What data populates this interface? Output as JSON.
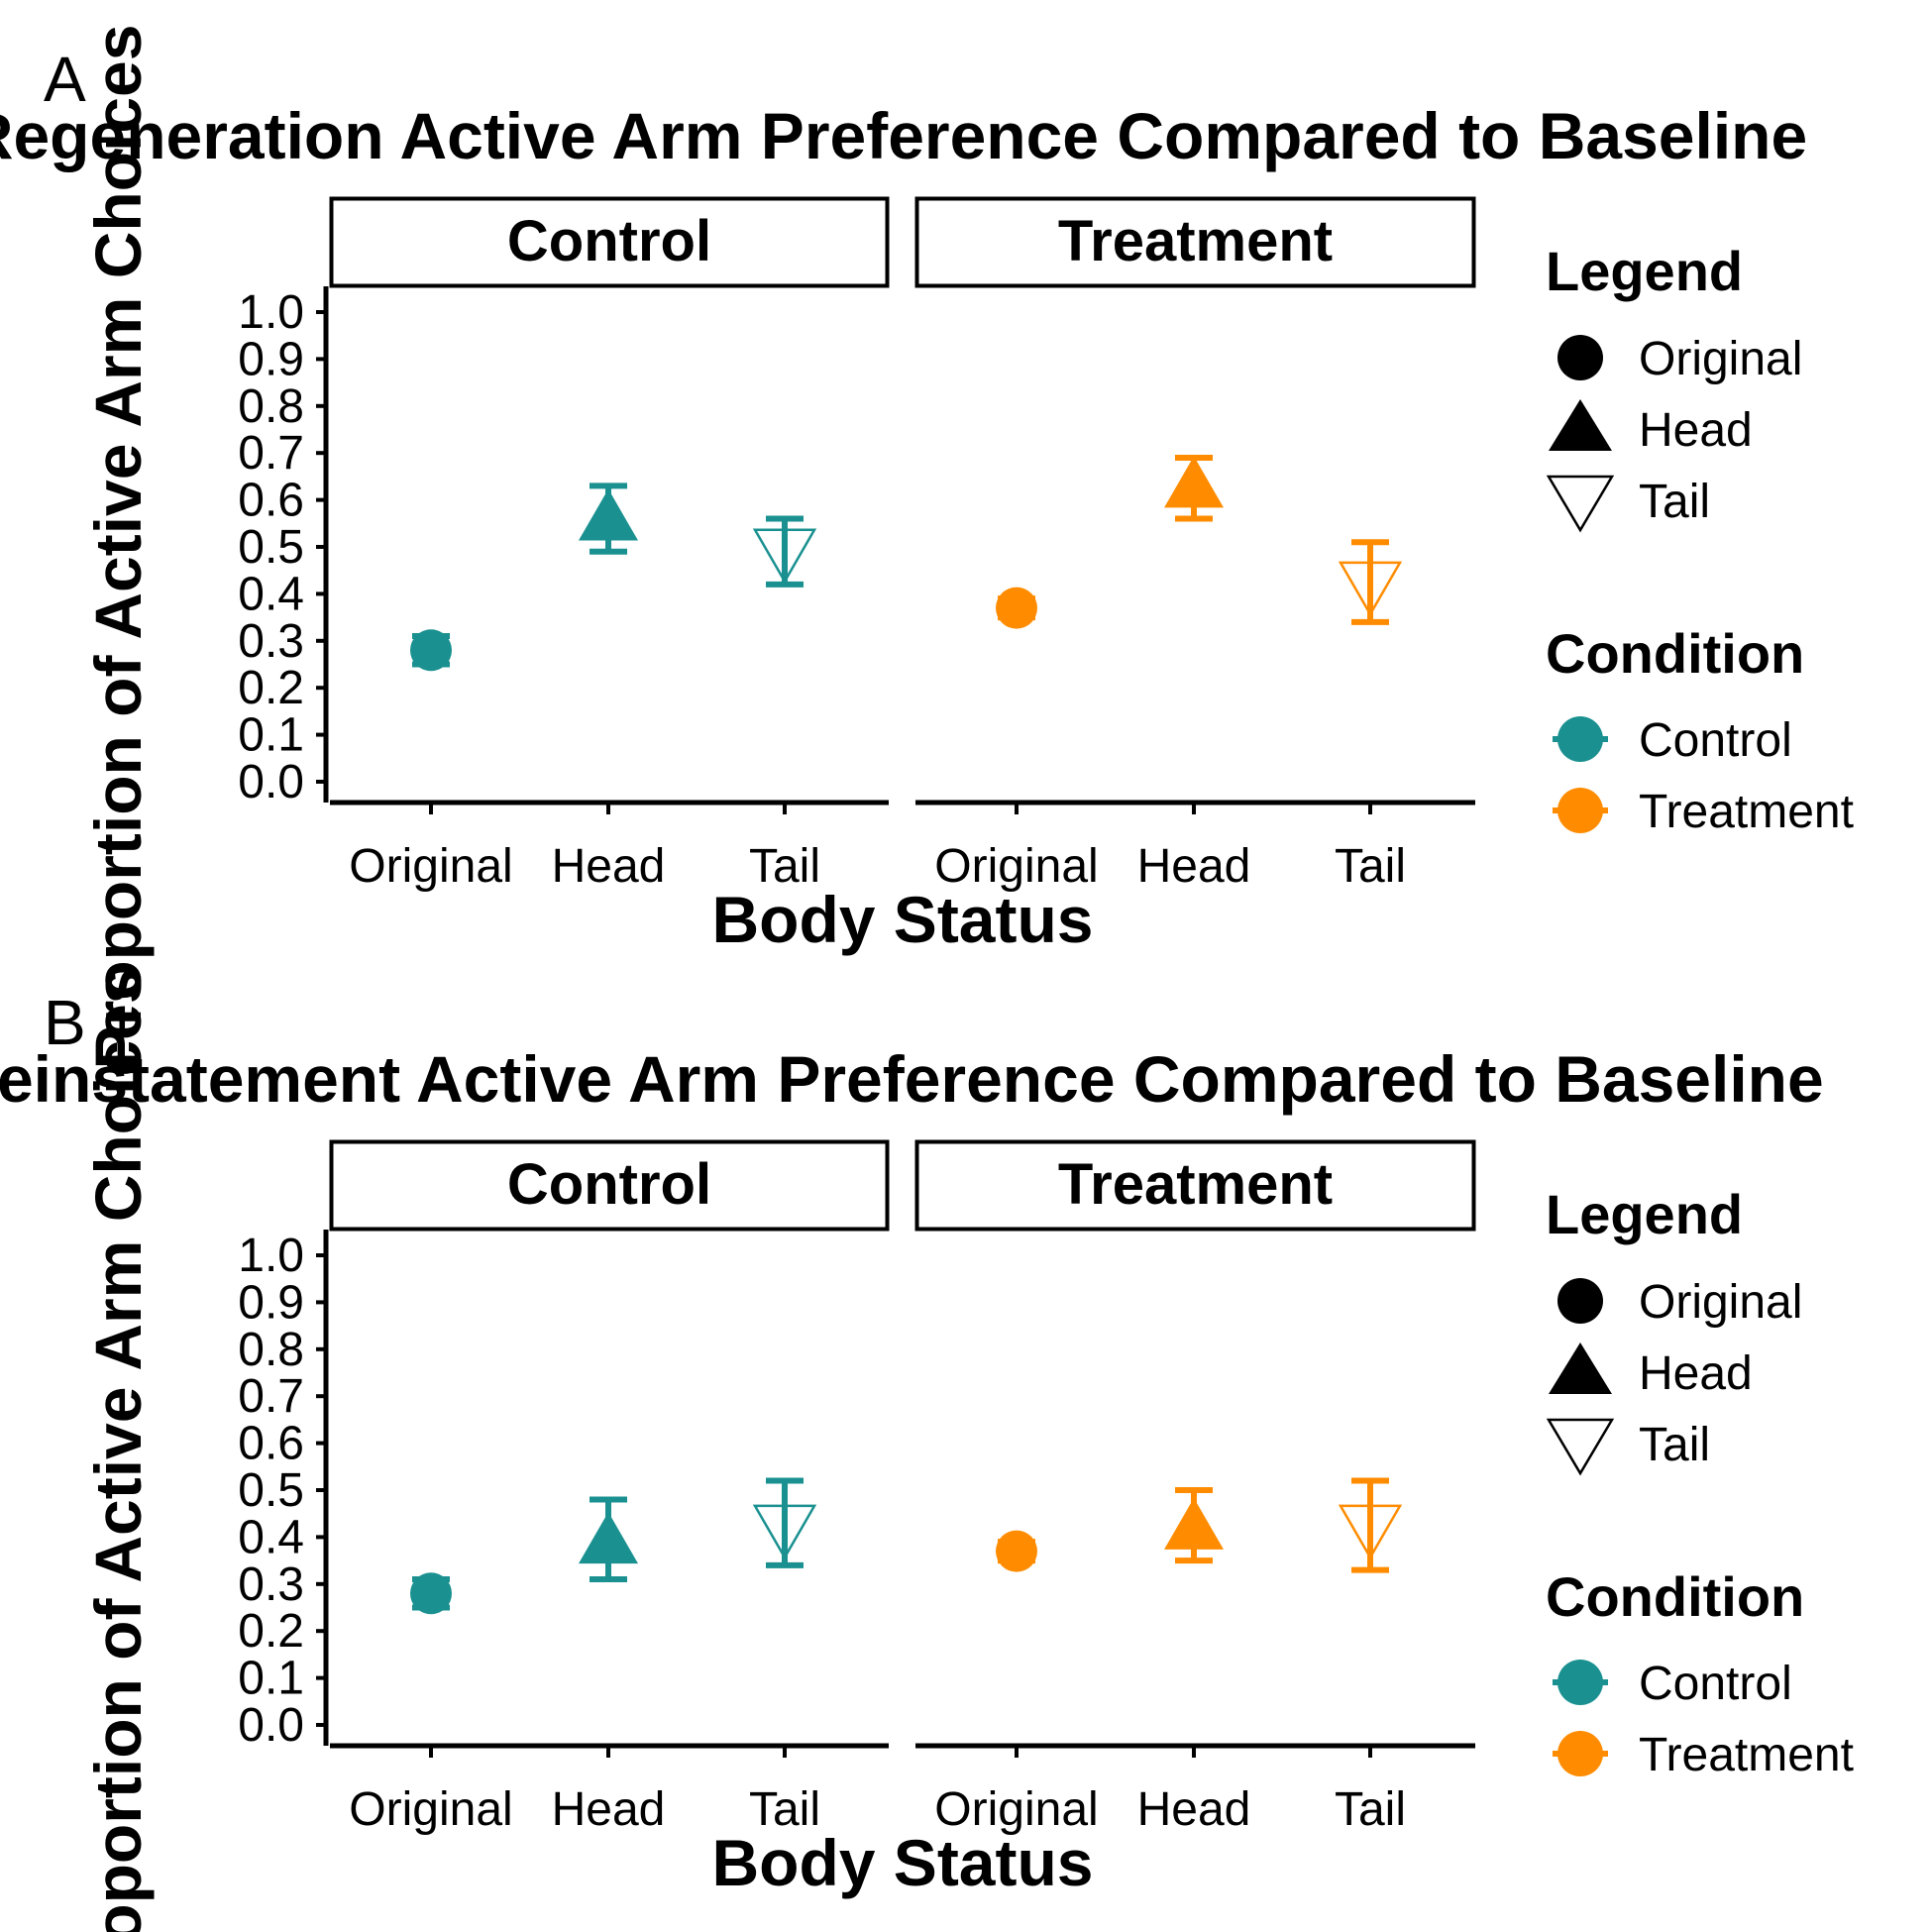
{
  "panel_labels": [
    "A",
    "B"
  ],
  "legend": {
    "shape_title": "Legend",
    "shape_items": [
      "Original",
      "Head",
      "Tail"
    ],
    "color_title": "Condition",
    "color_items": [
      "Control",
      "Treatment"
    ]
  },
  "colors": {
    "Control": "#1A9090",
    "Treatment": "#FF8C00",
    "axis": "#000000"
  },
  "chart_data": [
    {
      "type": "scatter",
      "panel": "A",
      "title": "Regeneration Active Arm Preference Compared to Baseline",
      "xlabel": "Body Status",
      "ylabel": "Proportion of Active Arm Choices",
      "facets": [
        "Control",
        "Treatment"
      ],
      "categories": [
        "Original",
        "Head",
        "Tail"
      ],
      "shapes": {
        "Original": "filled-circle",
        "Head": "filled-triangle-up",
        "Tail": "open-triangle-down"
      },
      "ylim": [
        0,
        1
      ],
      "yticks": [
        "0.0",
        "0.1",
        "0.2",
        "0.3",
        "0.4",
        "0.5",
        "0.6",
        "0.7",
        "0.8",
        "0.9",
        "1.0"
      ],
      "grid": false,
      "series": [
        {
          "name": "Control",
          "values": [
            0.28,
            0.56,
            0.49
          ],
          "lower": [
            0.25,
            0.49,
            0.42
          ],
          "upper": [
            0.31,
            0.63,
            0.56
          ]
        },
        {
          "name": "Treatment",
          "values": [
            0.37,
            0.63,
            0.42
          ],
          "lower": [
            0.35,
            0.56,
            0.34
          ],
          "upper": [
            0.39,
            0.69,
            0.51
          ]
        }
      ]
    },
    {
      "type": "scatter",
      "panel": "B",
      "title": "Reinstatement Active Arm Preference Compared to Baseline",
      "xlabel": "Body Status",
      "ylabel": "Proportion of Active Arm Choices",
      "facets": [
        "Control",
        "Treatment"
      ],
      "categories": [
        "Original",
        "Head",
        "Tail"
      ],
      "shapes": {
        "Original": "filled-circle",
        "Head": "filled-triangle-up",
        "Tail": "open-triangle-down"
      },
      "ylim": [
        0,
        1
      ],
      "yticks": [
        "0.0",
        "0.1",
        "0.2",
        "0.3",
        "0.4",
        "0.5",
        "0.6",
        "0.7",
        "0.8",
        "0.9",
        "1.0"
      ],
      "grid": false,
      "series": [
        {
          "name": "Control",
          "values": [
            0.28,
            0.39,
            0.42
          ],
          "lower": [
            0.25,
            0.31,
            0.34
          ],
          "upper": [
            0.31,
            0.48,
            0.52
          ]
        },
        {
          "name": "Treatment",
          "values": [
            0.37,
            0.42,
            0.42
          ],
          "lower": [
            0.35,
            0.35,
            0.33
          ],
          "upper": [
            0.39,
            0.5,
            0.52
          ]
        }
      ]
    }
  ]
}
